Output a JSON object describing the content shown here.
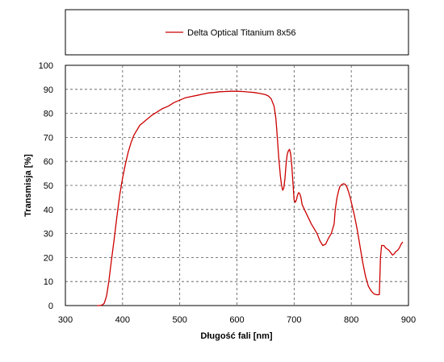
{
  "chart_data": {
    "type": "line",
    "title": "",
    "xlabel": "Długość fali [nm]",
    "ylabel": "Transmisja [%]",
    "xlim": [
      300,
      900
    ],
    "ylim": [
      0,
      100
    ],
    "x_ticks": [
      "300",
      "400",
      "500",
      "600",
      "700",
      "800",
      "900"
    ],
    "y_ticks": [
      "0",
      "10",
      "20",
      "30",
      "40",
      "50",
      "60",
      "70",
      "80",
      "90",
      "100"
    ],
    "grid": true,
    "legend_position": "top",
    "series": [
      {
        "name": "Delta Optical Titanium 8x56",
        "color": "#cc0000",
        "x": [
          355,
          360,
          365,
          368,
          372,
          376,
          380,
          385,
          390,
          395,
          400,
          405,
          410,
          415,
          420,
          430,
          440,
          450,
          460,
          470,
          480,
          490,
          500,
          510,
          520,
          530,
          540,
          550,
          560,
          570,
          580,
          590,
          600,
          610,
          620,
          630,
          640,
          650,
          655,
          660,
          665,
          668,
          670,
          673,
          676,
          678,
          680,
          682,
          684,
          686,
          688,
          690,
          692,
          694,
          696,
          698,
          700,
          702,
          704,
          706,
          708,
          710,
          712,
          714,
          716,
          718,
          720,
          725,
          730,
          735,
          740,
          745,
          750,
          755,
          760,
          765,
          770,
          772,
          775,
          778,
          780,
          783,
          786,
          789,
          792,
          795,
          798,
          800,
          805,
          810,
          815,
          820,
          825,
          830,
          835,
          840,
          843,
          846,
          849,
          850,
          851,
          853,
          855,
          857,
          860,
          863,
          866,
          869,
          872,
          875,
          878,
          881,
          884,
          887,
          890
        ],
        "y": [
          0,
          0,
          0.3,
          1,
          4,
          10,
          18,
          27,
          37,
          46,
          53,
          59,
          64,
          68,
          71,
          75,
          77,
          79,
          80.5,
          82,
          83,
          84.5,
          85.5,
          86.5,
          87,
          87.5,
          88,
          88.5,
          88.7,
          89,
          89.1,
          89.2,
          89.2,
          89.1,
          88.9,
          88.7,
          88.3,
          87.8,
          87.2,
          86,
          83,
          78,
          72,
          62,
          54,
          50,
          48,
          49,
          53,
          59,
          63,
          64.5,
          65,
          63,
          58,
          51,
          44,
          43,
          44,
          46,
          47,
          46.5,
          45,
          42,
          41,
          40,
          39,
          36.5,
          34,
          32,
          30,
          27,
          25,
          25.5,
          28,
          30,
          34,
          40,
          45,
          48,
          49.5,
          50.3,
          50.7,
          50.5,
          49.5,
          47.5,
          45,
          43,
          38,
          32,
          25,
          18,
          12,
          8,
          6,
          4.8,
          4.6,
          4.5,
          4.6,
          12,
          20,
          25,
          25,
          25,
          24,
          23.5,
          23,
          22,
          21,
          21.5,
          22.5,
          23,
          24,
          25.5,
          26.5
        ]
      }
    ]
  }
}
